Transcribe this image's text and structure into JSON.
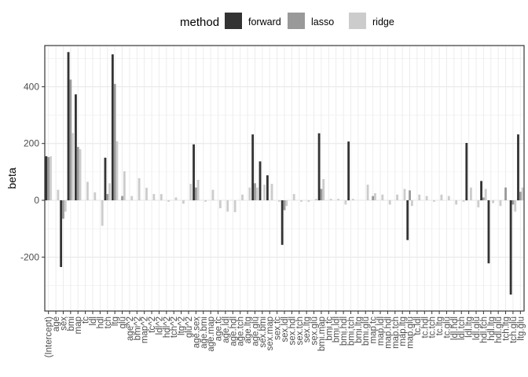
{
  "chart_data": {
    "type": "bar",
    "title": "",
    "xlabel": "",
    "ylabel": "beta",
    "ylim": [
      -390,
      545
    ],
    "yticks": [
      -200,
      0,
      200,
      400
    ],
    "grid": true,
    "legend_position": "top",
    "legend_title": "method",
    "categories": [
      "(Intercept)",
      "age",
      "sex",
      "bmi",
      "map",
      "tc",
      "ldl",
      "hdl",
      "tch",
      "ltg",
      "glu",
      "age^2",
      "bmi^2",
      "map^2",
      "tc^2",
      "ldl^2",
      "hdl^2",
      "tch^2",
      "ltg^2",
      "glu^2",
      "age.sex",
      "age.bmi",
      "age.map",
      "age.tc",
      "age.ldl",
      "age.hdl",
      "age.tch",
      "age.ltg",
      "age.glu",
      "sex.bmi",
      "sex.map",
      "sex.tc",
      "sex.ldl",
      "sex.hdl",
      "sex.tch",
      "sex.ltg",
      "sex.glu",
      "bmi.map",
      "bmi.tc",
      "bmi.ldl",
      "bmi.hdl",
      "bmi.tch",
      "bmi.ltg",
      "bmi.glu",
      "map.tc",
      "map.ldl",
      "map.hdl",
      "map.tch",
      "map.ltg",
      "map.glu",
      "tc.ldl",
      "tc.hdl",
      "tc.tch",
      "tc.ltg",
      "tc.glu",
      "ldl.hdl",
      "ldl.tch",
      "ldl.ltg",
      "ldl.glu",
      "hdl.tch",
      "hdl.ltg",
      "hdl.glu",
      "tch.ltg",
      "tch.glu",
      "ltg.glu"
    ],
    "series": [
      {
        "name": "forward",
        "color": "#333333",
        "values": [
          155,
          0,
          -235,
          522,
          373,
          0,
          0,
          0,
          150,
          514,
          0,
          0,
          0,
          0,
          0,
          0,
          0,
          0,
          0,
          0,
          197,
          0,
          0,
          0,
          0,
          0,
          0,
          0,
          232,
          137,
          88,
          0,
          -157,
          0,
          0,
          0,
          0,
          236,
          0,
          0,
          0,
          207,
          0,
          0,
          0,
          0,
          0,
          0,
          0,
          -140,
          0,
          0,
          0,
          0,
          0,
          0,
          0,
          202,
          0,
          68,
          -222,
          0,
          0,
          -332,
          232
        ]
      },
      {
        "name": "lasso",
        "color": "#999999",
        "values": [
          152,
          0,
          -65,
          425,
          188,
          0,
          0,
          0,
          22,
          410,
          15,
          0,
          0,
          0,
          0,
          0,
          0,
          0,
          0,
          0,
          45,
          0,
          0,
          0,
          0,
          0,
          0,
          0,
          60,
          0,
          0,
          0,
          -35,
          0,
          0,
          0,
          0,
          40,
          0,
          0,
          0,
          0,
          0,
          0,
          15,
          0,
          0,
          0,
          0,
          35,
          0,
          0,
          0,
          0,
          0,
          0,
          0,
          0,
          0,
          10,
          0,
          0,
          45,
          -15,
          30
        ]
      },
      {
        "name": "ridge",
        "color": "#cccccc",
        "values": [
          155,
          37,
          -40,
          237,
          180,
          65,
          28,
          -90,
          60,
          208,
          102,
          15,
          78,
          44,
          22,
          22,
          -5,
          10,
          -12,
          58,
          72,
          -5,
          37,
          -28,
          -40,
          -42,
          20,
          45,
          45,
          55,
          58,
          -5,
          -20,
          22,
          -5,
          -5,
          5,
          75,
          5,
          5,
          -15,
          5,
          0,
          55,
          25,
          20,
          -15,
          20,
          40,
          -20,
          20,
          15,
          -5,
          20,
          15,
          -15,
          -5,
          45,
          -25,
          40,
          -10,
          -20,
          0,
          -40,
          45
        ]
      }
    ]
  },
  "legend": {
    "title": "method",
    "items": [
      {
        "label": "forward",
        "color": "#333333"
      },
      {
        "label": "lasso",
        "color": "#999999"
      },
      {
        "label": "ridge",
        "color": "#cccccc"
      }
    ]
  },
  "axis": {
    "y_title": "beta"
  }
}
